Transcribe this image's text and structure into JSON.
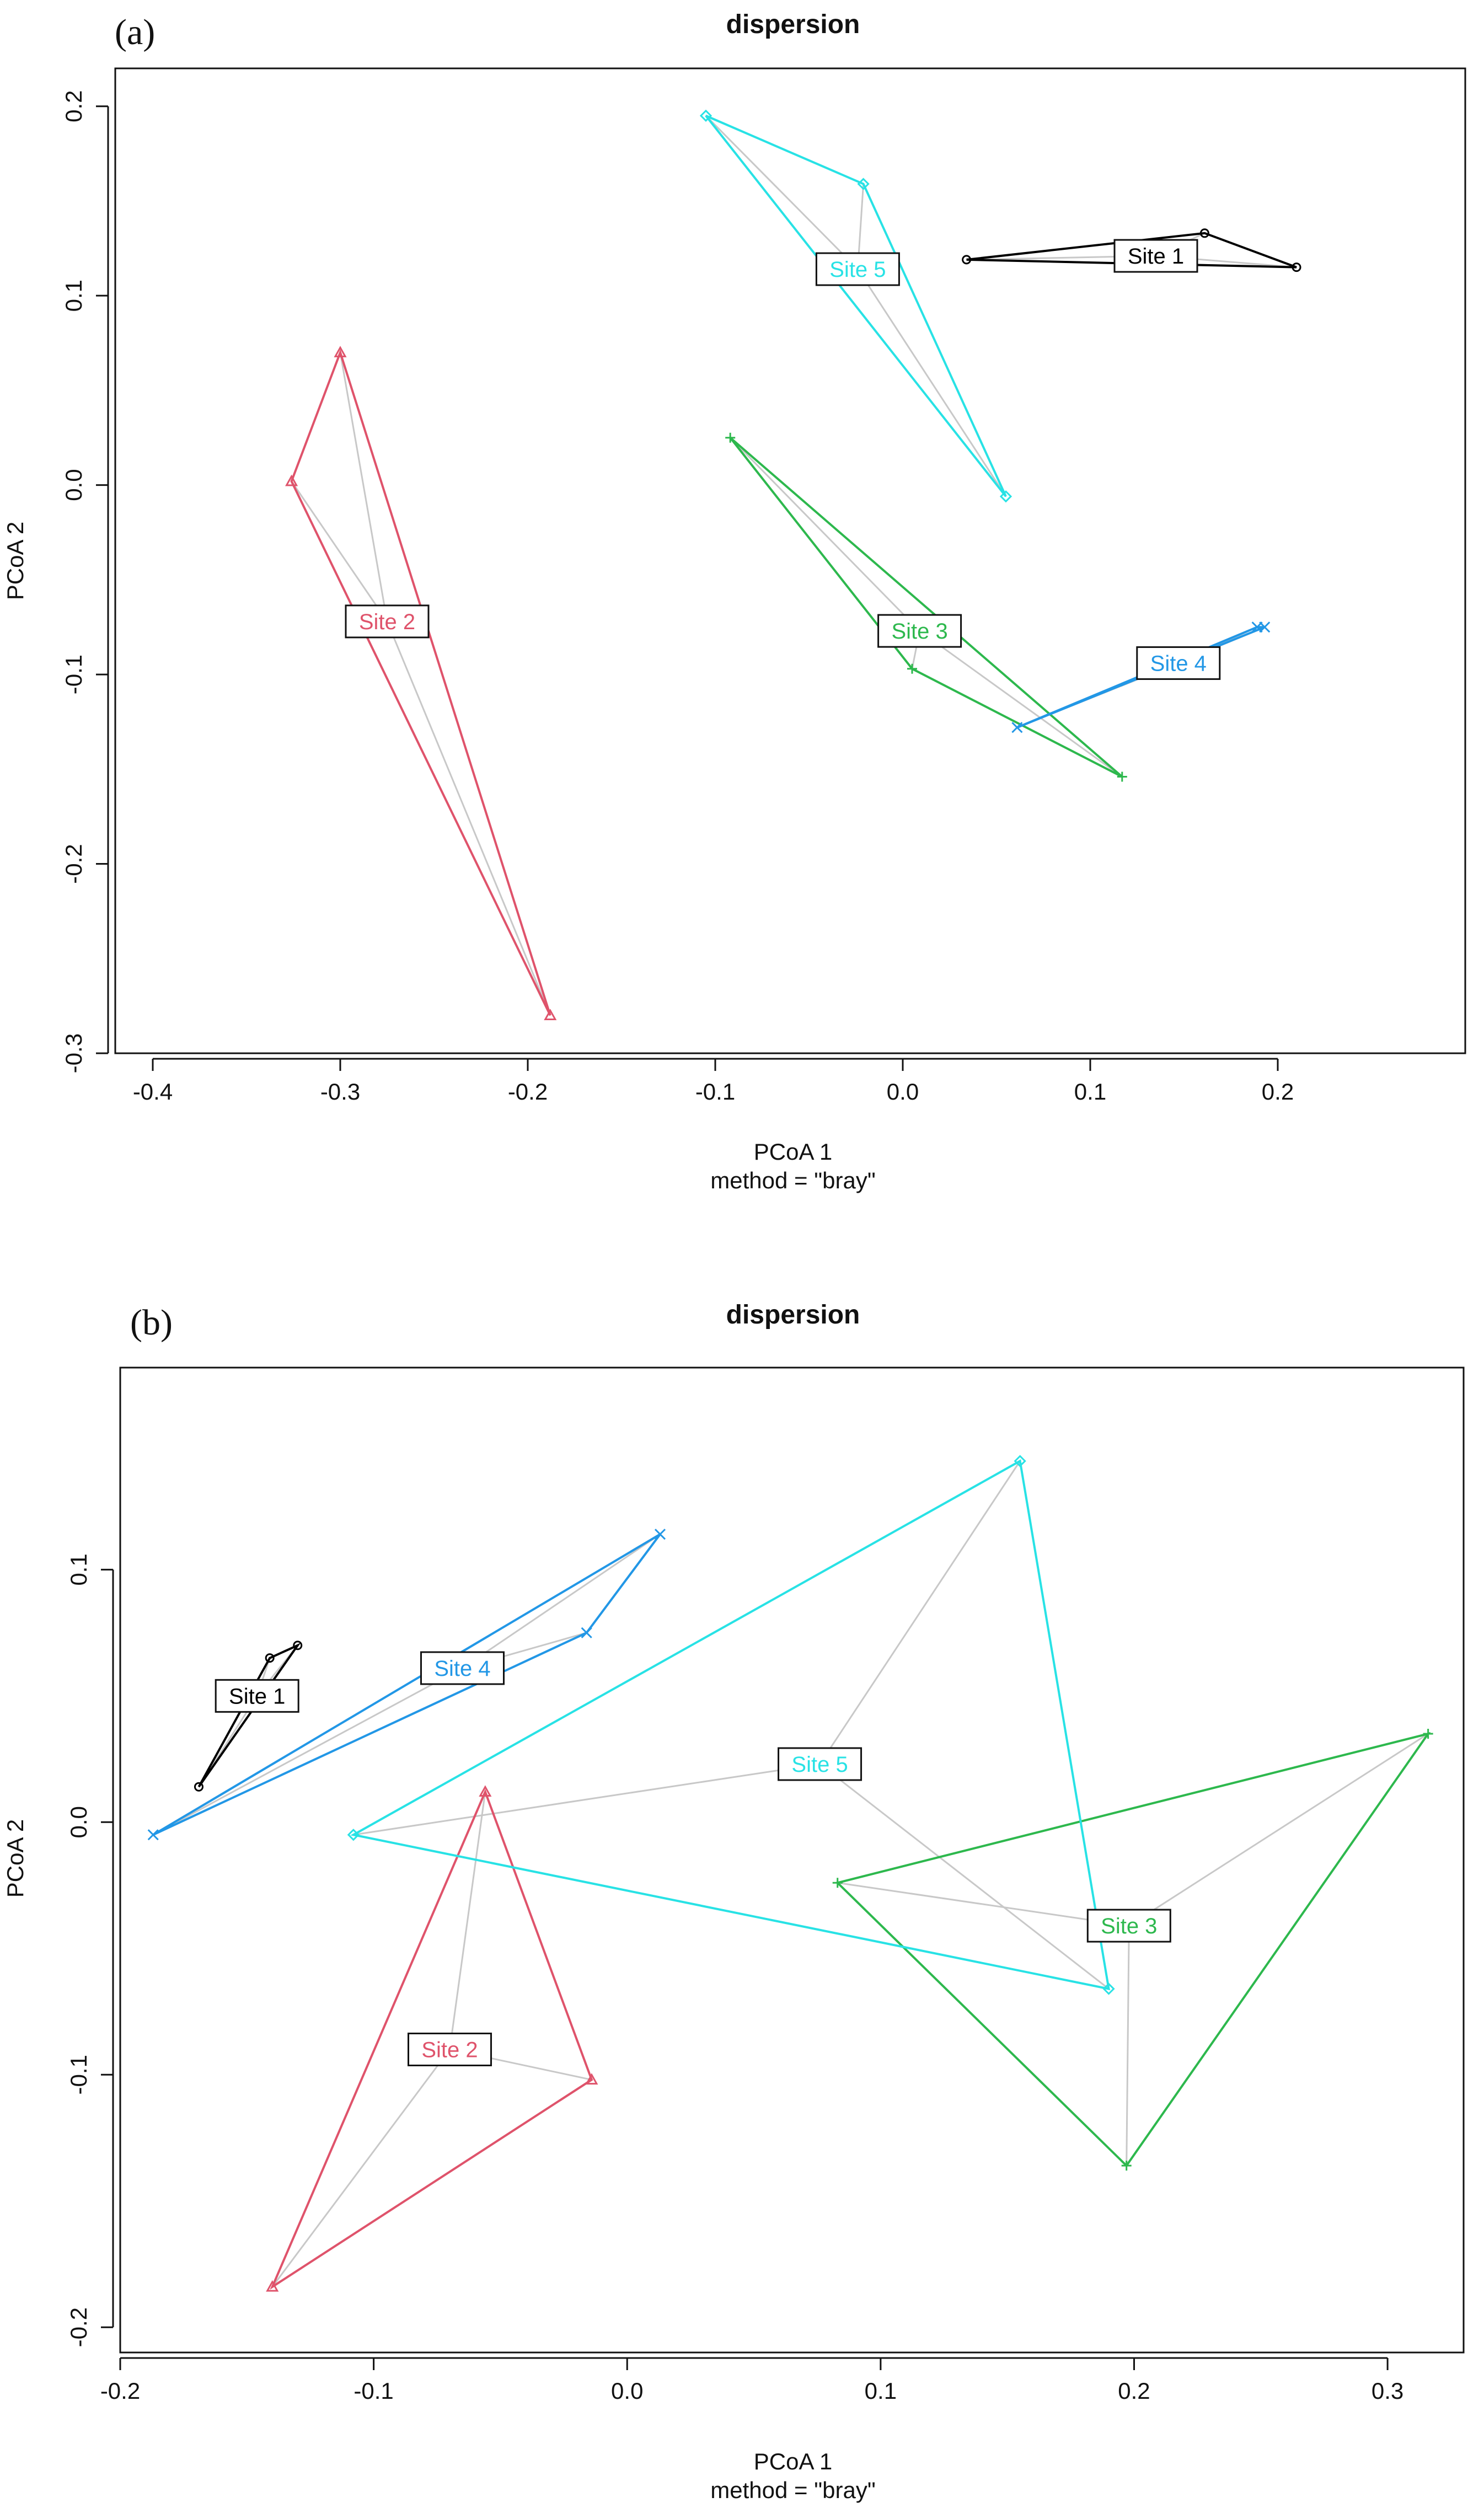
{
  "chart_data": [
    {
      "type": "scatter",
      "panel_label": "(a)",
      "title": "dispersion",
      "xlabel": "PCoA 1",
      "xlabel2": "method = \"bray\"",
      "ylabel": "PCoA 2",
      "xlim": [
        -0.42,
        0.3
      ],
      "ylim": [
        -0.3,
        0.22
      ],
      "xticks": [
        -0.4,
        -0.3,
        -0.2,
        -0.1,
        0.0,
        0.1,
        0.2
      ],
      "xtick_labels": [
        "-0.4",
        "-0.3",
        "-0.2",
        "-0.1",
        "0.0",
        "0.1",
        "0.2"
      ],
      "yticks": [
        -0.3,
        -0.2,
        -0.1,
        0.0,
        0.1,
        0.2
      ],
      "ytick_labels": [
        "-0.3",
        "-0.2",
        "-0.1",
        "0.0",
        "0.1",
        "0.2"
      ],
      "series": [
        {
          "name": "Site 1",
          "color": "#000000",
          "marker": "circle",
          "centroid": [
            0.135,
            0.121
          ],
          "points": [
            [
              0.034,
              0.119
            ],
            [
              0.161,
              0.133
            ],
            [
              0.21,
              0.115
            ]
          ],
          "hull": [
            0,
            1,
            2
          ]
        },
        {
          "name": "Site 2",
          "color": "#DF536B",
          "marker": "triangle",
          "centroid": [
            -0.275,
            -0.072
          ],
          "points": [
            [
              -0.3,
              0.07
            ],
            [
              -0.326,
              0.002
            ],
            [
              -0.188,
              -0.28
            ]
          ],
          "hull": [
            0,
            1,
            2
          ]
        },
        {
          "name": "Site 3",
          "color": "#2DB84D",
          "marker": "plus",
          "centroid": [
            0.009,
            -0.077
          ],
          "points": [
            [
              -0.092,
              0.025
            ],
            [
              0.005,
              -0.097
            ],
            [
              0.117,
              -0.154
            ]
          ],
          "hull": [
            0,
            1,
            2
          ]
        },
        {
          "name": "Site 4",
          "color": "#2297E6",
          "marker": "x",
          "centroid": [
            0.147,
            -0.094
          ],
          "points": [
            [
              0.061,
              -0.128
            ],
            [
              0.189,
              -0.075
            ],
            [
              0.193,
              -0.075
            ]
          ],
          "hull": [
            0,
            1,
            2
          ]
        },
        {
          "name": "Site 5",
          "color": "#28E2E5",
          "marker": "diamond",
          "centroid": [
            -0.024,
            0.114
          ],
          "points": [
            [
              -0.105,
              0.195
            ],
            [
              -0.021,
              0.159
            ],
            [
              0.055,
              -0.006
            ]
          ],
          "hull": [
            0,
            1,
            2
          ]
        }
      ]
    },
    {
      "type": "scatter",
      "panel_label": "(b)",
      "title": "dispersion",
      "xlabel": "PCoA 1",
      "xlabel2": "method = \"bray\"",
      "ylabel": "PCoA 2",
      "xlim": [
        -0.2,
        0.33
      ],
      "ylim": [
        -0.21,
        0.18
      ],
      "xticks": [
        -0.2,
        -0.1,
        0.0,
        0.1,
        0.2,
        0.3
      ],
      "xtick_labels": [
        "-0.2",
        "-0.1",
        "0.0",
        "0.1",
        "0.2",
        "0.3"
      ],
      "yticks": [
        -0.2,
        -0.1,
        0.0,
        0.1
      ],
      "ytick_labels": [
        "-0.2",
        "-0.1",
        "0.0",
        "0.1"
      ],
      "series": [
        {
          "name": "Site 1",
          "color": "#000000",
          "marker": "circle",
          "centroid": [
            -0.146,
            0.05
          ],
          "points": [
            [
              -0.169,
              0.014
            ],
            [
              -0.141,
              0.065
            ],
            [
              -0.13,
              0.07
            ]
          ],
          "hull": [
            0,
            1,
            2
          ]
        },
        {
          "name": "Site 2",
          "color": "#DF536B",
          "marker": "triangle",
          "centroid": [
            -0.07,
            -0.09
          ],
          "points": [
            [
              -0.056,
              0.012
            ],
            [
              -0.014,
              -0.102
            ],
            [
              -0.14,
              -0.184
            ]
          ],
          "hull": [
            0,
            1,
            2
          ]
        },
        {
          "name": "Site 3",
          "color": "#2DB84D",
          "marker": "plus",
          "centroid": [
            0.198,
            -0.041
          ],
          "points": [
            [
              0.083,
              -0.024
            ],
            [
              0.316,
              0.035
            ],
            [
              0.197,
              -0.136
            ]
          ],
          "hull": [
            0,
            1,
            2
          ]
        },
        {
          "name": "Site 4",
          "color": "#2297E6",
          "marker": "x",
          "centroid": [
            -0.065,
            0.061
          ],
          "points": [
            [
              -0.187,
              -0.005
            ],
            [
              -0.016,
              0.075
            ],
            [
              0.013,
              0.114
            ]
          ],
          "hull": [
            0,
            2,
            1
          ]
        },
        {
          "name": "Site 5",
          "color": "#28E2E5",
          "marker": "diamond",
          "centroid": [
            0.076,
            0.023
          ],
          "points": [
            [
              -0.108,
              -0.005
            ],
            [
              0.155,
              0.143
            ],
            [
              0.19,
              -0.066
            ]
          ],
          "hull": [
            0,
            1,
            2
          ]
        }
      ]
    }
  ]
}
